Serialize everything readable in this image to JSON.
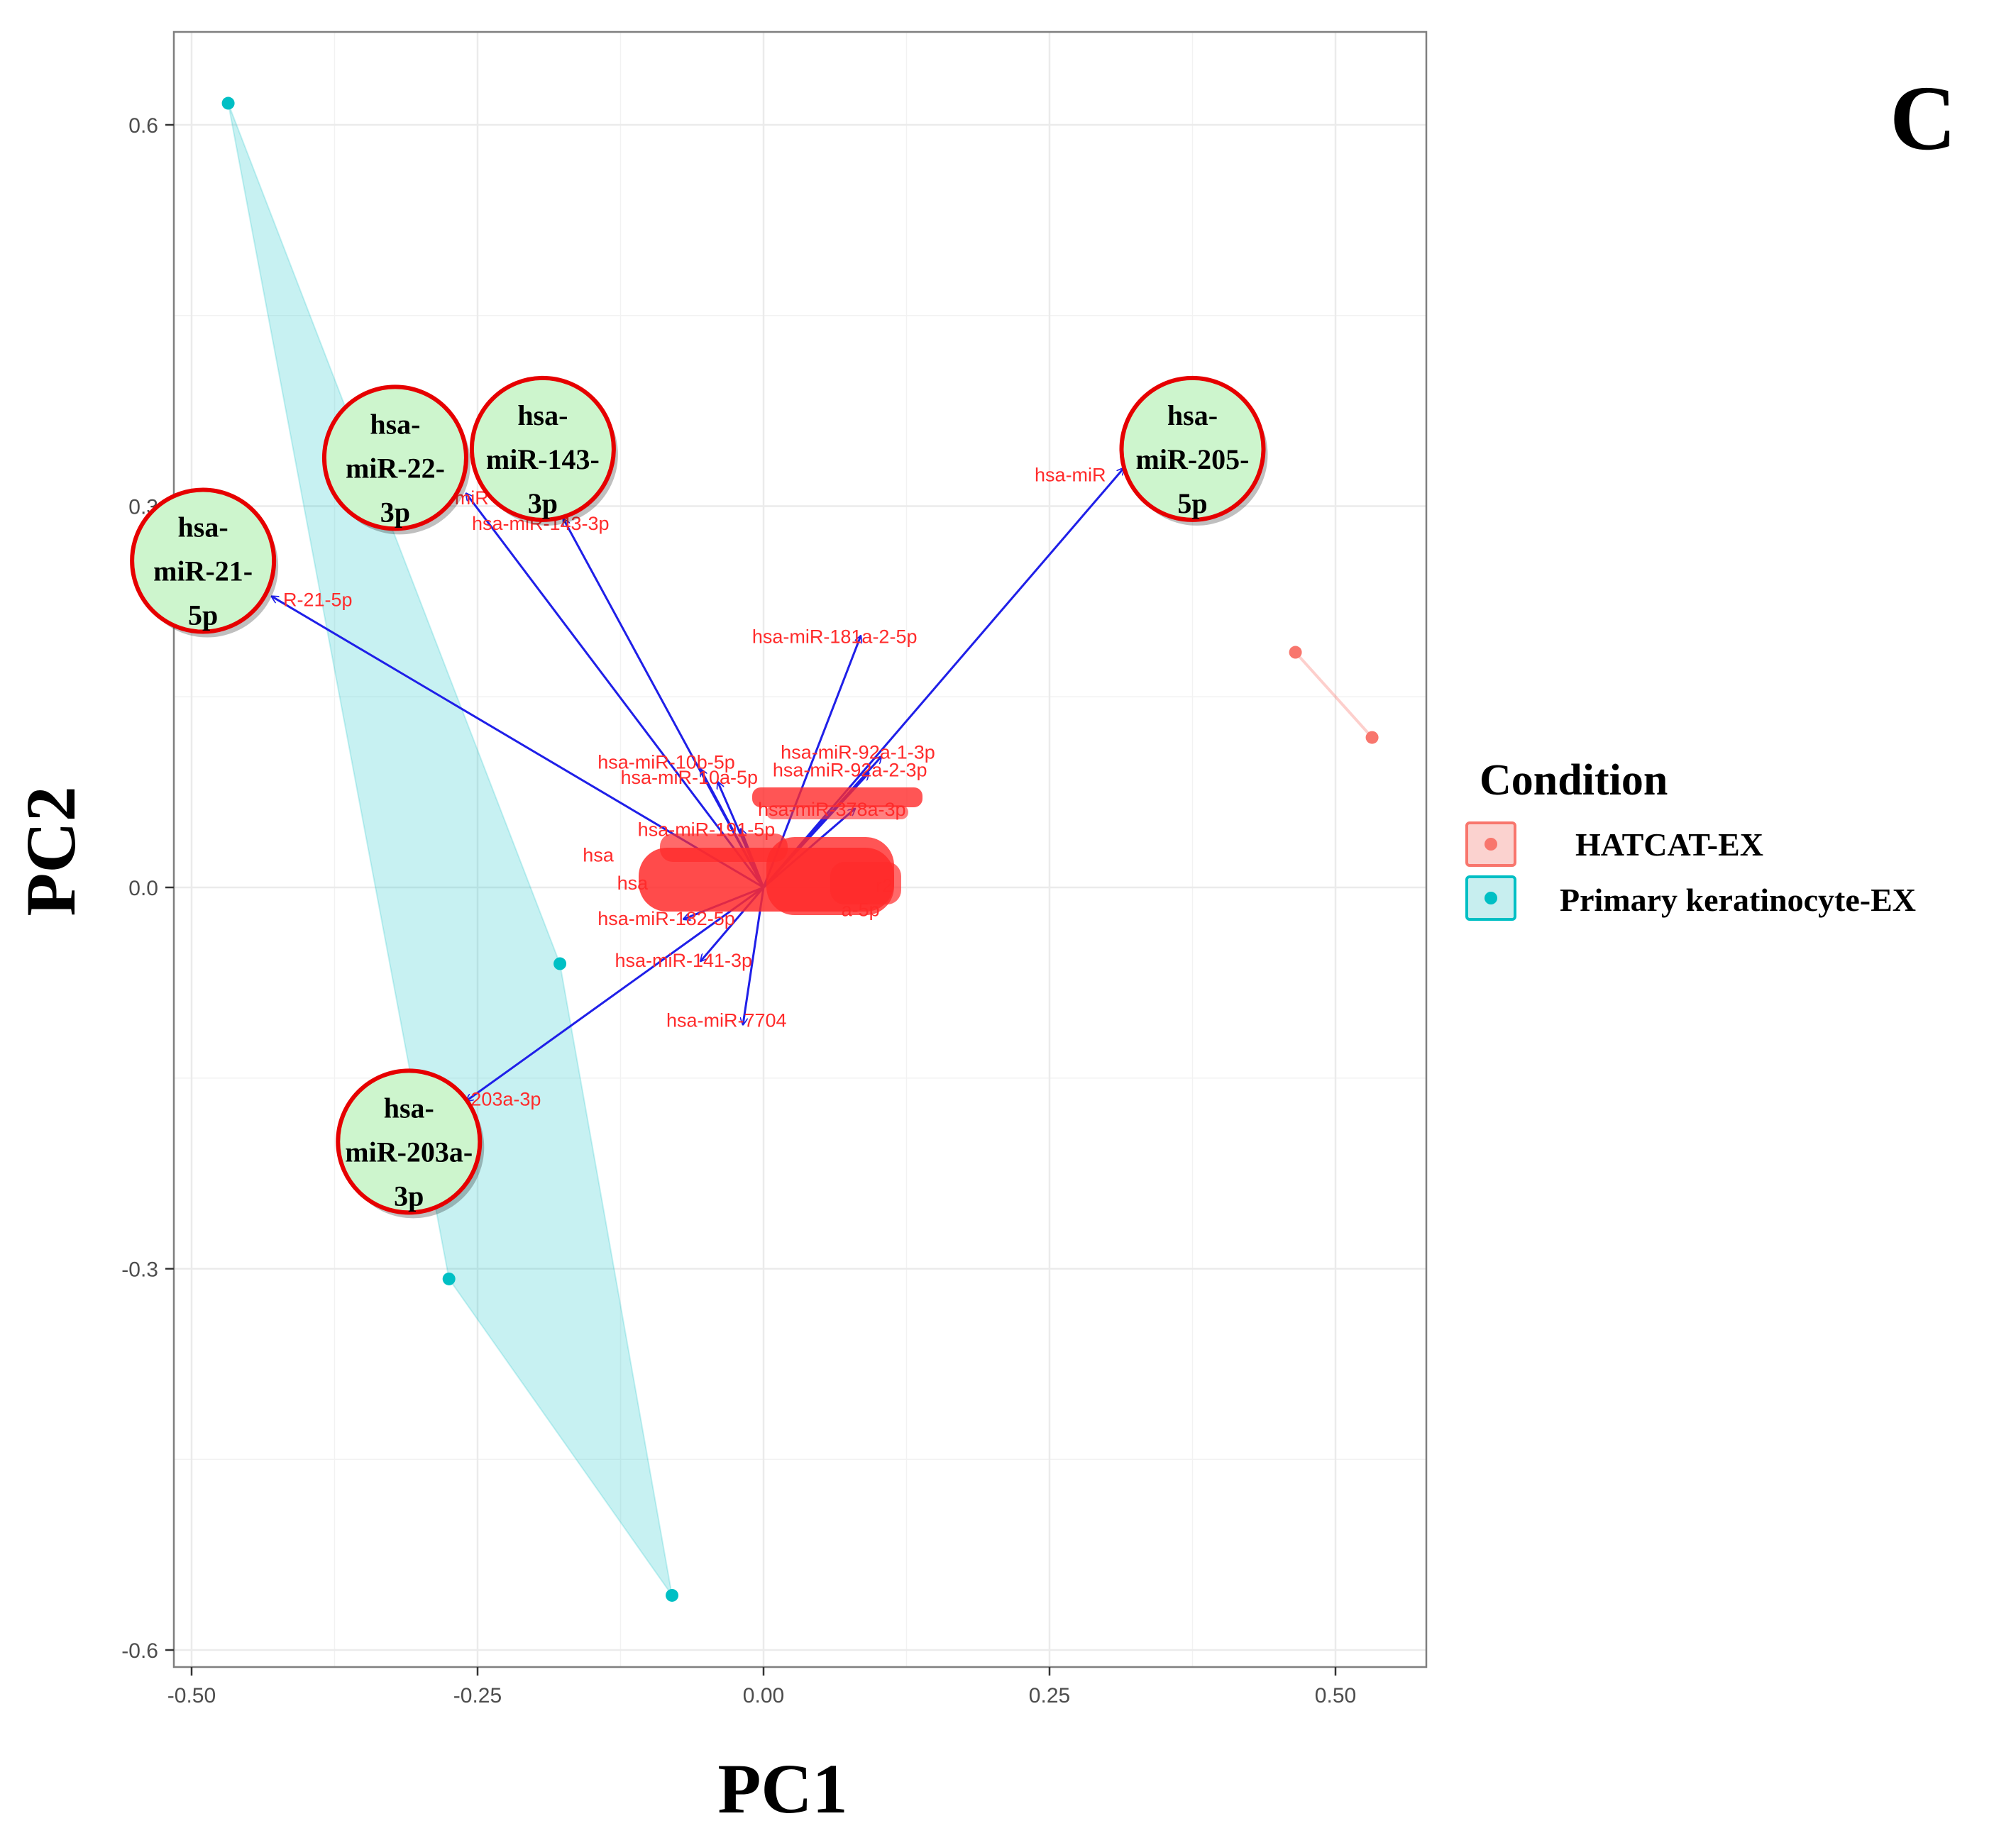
{
  "panel_letter": "C",
  "chart_data": {
    "type": "scatter",
    "xlabel": "PC1",
    "ylabel": "PC2",
    "xlim": [
      -0.5,
      0.5
    ],
    "ylim": [
      -0.6,
      0.6
    ],
    "x_ticks": [
      "-0.50",
      "-0.25",
      "0.00",
      "0.25",
      "0.50"
    ],
    "y_ticks": [
      "0.6",
      "0.3",
      "0.0",
      "-0.3",
      "-0.6"
    ],
    "grid": true,
    "legend_position": "right",
    "legend": {
      "title": "Condition",
      "entries": [
        {
          "label": "HATCAT-EX",
          "color": "#f8766d"
        },
        {
          "label": "Primary keratinocyte-EX",
          "color": "#00bfc4"
        }
      ]
    },
    "series": [
      {
        "name": "HATCAT-EX",
        "color": "#f8766d",
        "points": [
          [
            0.465,
            0.185
          ],
          [
            0.532,
            0.118
          ]
        ]
      },
      {
        "name": "Primary keratinocyte-EX",
        "color": "#00bfc4",
        "points": [
          [
            -0.468,
            0.617
          ],
          [
            -0.178,
            -0.06
          ],
          [
            -0.275,
            -0.308
          ],
          [
            -0.08,
            -0.557
          ]
        ]
      }
    ],
    "loadings": [
      {
        "label": "hsa-miR-21-5p",
        "x": -0.43,
        "y": 0.229
      },
      {
        "label": "hsa-miR-22-3p",
        "x": -0.26,
        "y": 0.31
      },
      {
        "label": "hsa-miR-143-3p",
        "x": -0.175,
        "y": 0.29
      },
      {
        "label": "hsa-miR-205-5p",
        "x": 0.315,
        "y": 0.33
      },
      {
        "label": "hsa-miR-203a-3p",
        "x": -0.26,
        "y": -0.168
      },
      {
        "label": "hsa-miR-181a-2-5p",
        "x": 0.085,
        "y": 0.198
      },
      {
        "label": "hsa-miR-92a-1-3p",
        "x": 0.103,
        "y": 0.103
      },
      {
        "label": "hsa-miR-92a-2-3p",
        "x": 0.092,
        "y": 0.09
      },
      {
        "label": "hsa-miR-10b-5p",
        "x": -0.055,
        "y": 0.093
      },
      {
        "label": "hsa-miR-10a-5p",
        "x": -0.04,
        "y": 0.083
      },
      {
        "label": "hsa-miR-378a-3p",
        "x": 0.08,
        "y": 0.062
      },
      {
        "label": "hsa-miR-191-5p",
        "x": -0.02,
        "y": 0.046
      },
      {
        "label": "hsa-miR-182-5p",
        "x": -0.07,
        "y": -0.025
      },
      {
        "label": "hsa-miR-141-3p",
        "x": -0.055,
        "y": -0.058
      },
      {
        "label": "hsa-miR-7704",
        "x": -0.018,
        "y": -0.108
      }
    ],
    "loading_labels": [
      {
        "text": "R-21-5p",
        "x": -0.42,
        "y": 0.227
      },
      {
        "text": "miR",
        "x": -0.27,
        "y": 0.307
      },
      {
        "text": "hsa-miR-143-3p",
        "x": -0.255,
        "y": 0.287
      },
      {
        "text": "hsa-miR",
        "x": 0.237,
        "y": 0.325
      },
      {
        "text": "203a-3p",
        "x": -0.256,
        "y": -0.166
      },
      {
        "text": "hsa-miR-181a-2-5p",
        "x": -0.01,
        "y": 0.198
      },
      {
        "text": "hsa-miR-92a-1-3p",
        "x": 0.015,
        "y": 0.107
      },
      {
        "text": "hsa-miR-92a-2-3p",
        "x": 0.008,
        "y": 0.093
      },
      {
        "text": "hsa-miR-10b-5p",
        "x": -0.145,
        "y": 0.099
      },
      {
        "text": "hsa-miR-10a-5p",
        "x": -0.125,
        "y": 0.087
      },
      {
        "text": "hsa-miR-378a-3p",
        "x": -0.005,
        "y": 0.062
      },
      {
        "text": "hsa-miR-191-5p",
        "x": -0.11,
        "y": 0.046
      },
      {
        "text": "hsa-miR-182-5p",
        "x": -0.145,
        "y": -0.024
      },
      {
        "text": "hsa-miR-141-3p",
        "x": -0.13,
        "y": -0.057
      },
      {
        "text": "hsa-miR-7704",
        "x": -0.085,
        "y": -0.104
      },
      {
        "text": "hsa",
        "x": -0.158,
        "y": 0.026
      },
      {
        "text": "hsa",
        "x": -0.128,
        "y": 0.004
      },
      {
        "text": "a-5p",
        "x": 0.068,
        "y": -0.017
      },
      {
        "text": "r2",
        "x": 0.098,
        "y": 0.002
      }
    ],
    "annotations": [
      {
        "lines": [
          "hsa-",
          "miR-21-",
          "5p"
        ],
        "x": -0.49,
        "y": 0.257
      },
      {
        "lines": [
          "hsa-",
          "miR-22-",
          "3p"
        ],
        "x": -0.322,
        "y": 0.338
      },
      {
        "lines": [
          "hsa-",
          "miR-143-",
          "3p"
        ],
        "x": -0.193,
        "y": 0.345
      },
      {
        "lines": [
          "hsa-",
          "miR-205-",
          "5p"
        ],
        "x": 0.375,
        "y": 0.345
      },
      {
        "lines": [
          "hsa-",
          "miR-203a-",
          "3p"
        ],
        "x": -0.31,
        "y": -0.2
      }
    ]
  }
}
